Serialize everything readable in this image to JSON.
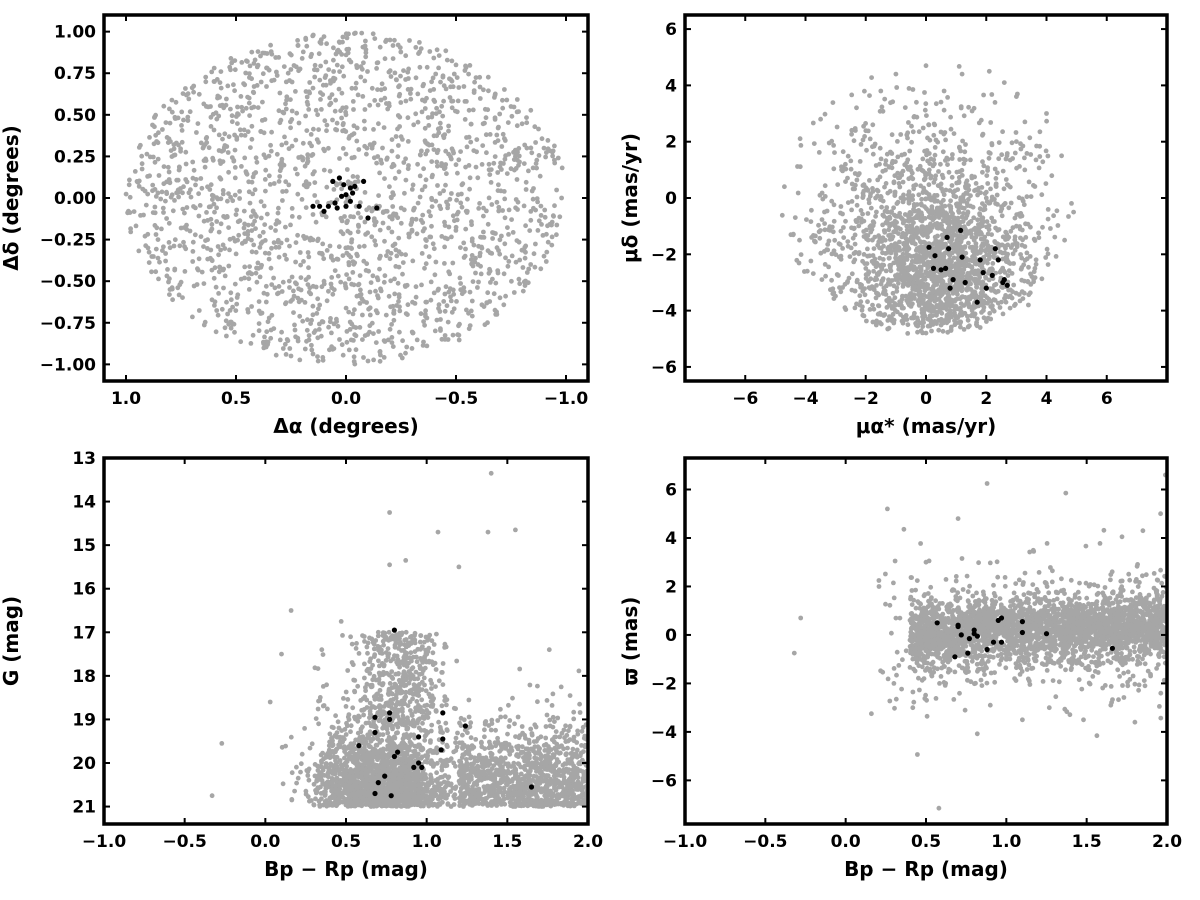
{
  "colors": {
    "field": "#a6a6a6",
    "member": "#000000",
    "axes": "#000000"
  },
  "chart_data": [
    {
      "type": "scatter",
      "panel": "top-left",
      "xlabel": "Δα (degrees)",
      "ylabel": "Δδ (degrees)",
      "xlim": [
        1.1,
        -1.1
      ],
      "ylim": [
        -1.1,
        1.1
      ],
      "x_inverted": true,
      "xticks": [
        "1.0",
        "0.5",
        "0.0",
        "−0.5",
        "−1.0"
      ],
      "xtick_values": [
        1.0,
        0.5,
        0.0,
        -0.5,
        -1.0
      ],
      "yticks": [
        "−1.00",
        "−0.75",
        "−0.50",
        "−0.25",
        "0.00",
        "0.25",
        "0.50",
        "0.75",
        "1.00"
      ],
      "ytick_values": [
        -1.0,
        -0.75,
        -0.5,
        -0.25,
        0.0,
        0.25,
        0.5,
        0.75,
        1.0
      ],
      "series": [
        {
          "role": "field",
          "description_level": "uniform disc of radius ~1 degree, approx. 1900 stars",
          "points": [
            [
              0.95,
              0.1
            ],
            [
              0.9,
              -0.3
            ],
            [
              0.8,
              0.45
            ],
            [
              0.6,
              0.7
            ],
            [
              0.4,
              0.88
            ],
            [
              0.1,
              0.97
            ],
            [
              -0.2,
              0.95
            ],
            [
              -0.5,
              0.8
            ],
            [
              -0.75,
              0.55
            ],
            [
              -0.9,
              0.3
            ],
            [
              -0.98,
              0.0
            ],
            [
              -0.9,
              -0.35
            ],
            [
              -0.7,
              -0.6
            ],
            [
              -0.45,
              -0.85
            ],
            [
              -0.1,
              -0.98
            ],
            [
              0.25,
              -0.95
            ],
            [
              0.55,
              -0.78
            ],
            [
              0.8,
              -0.55
            ],
            [
              0.3,
              0.2
            ],
            [
              -0.3,
              -0.2
            ],
            [
              0.5,
              -0.1
            ],
            [
              -0.5,
              0.2
            ],
            [
              0.0,
              0.5
            ],
            [
              0.1,
              -0.5
            ],
            [
              -0.6,
              -0.4
            ],
            [
              0.65,
              0.3
            ]
          ]
        },
        {
          "role": "members",
          "points": [
            [
              0.03,
              0.12
            ],
            [
              0.01,
              0.08
            ],
            [
              -0.02,
              0.06
            ],
            [
              0.06,
              0.1
            ],
            [
              -0.04,
              0.07
            ],
            [
              0.0,
              0.02
            ],
            [
              0.02,
              0.01
            ],
            [
              -0.03,
              0.03
            ],
            [
              0.05,
              -0.03
            ],
            [
              0.12,
              -0.05
            ],
            [
              0.08,
              -0.05
            ],
            [
              0.04,
              -0.06
            ],
            [
              0.0,
              -0.05
            ],
            [
              -0.06,
              -0.05
            ],
            [
              -0.08,
              0.1
            ],
            [
              -0.1,
              -0.12
            ],
            [
              -0.14,
              -0.06
            ],
            [
              0.15,
              -0.05
            ],
            [
              0.1,
              -0.08
            ],
            [
              -0.02,
              -0.02
            ]
          ]
        }
      ]
    },
    {
      "type": "scatter",
      "panel": "top-right",
      "xlabel": "μα* (mas/yr)",
      "ylabel": "μδ (mas/yr)",
      "xlim": [
        -8,
        8
      ],
      "ylim": [
        -6.5,
        6.5
      ],
      "xticks": [
        "−6",
        "−4",
        "−2",
        "0",
        "2",
        "4",
        "6"
      ],
      "xtick_values": [
        -6,
        -4,
        -2,
        0,
        2,
        4,
        6
      ],
      "yticks": [
        "−6",
        "−4",
        "−2",
        "0",
        "2",
        "4",
        "6"
      ],
      "ytick_values": [
        -6,
        -4,
        -2,
        0,
        2,
        4,
        6
      ],
      "series": [
        {
          "role": "field",
          "points": [
            [
              -4.7,
              0.4
            ],
            [
              -4.2,
              -1.5
            ],
            [
              -3.5,
              2.8
            ],
            [
              -2.8,
              1.0
            ],
            [
              -2.2,
              -3.8
            ],
            [
              -1.5,
              3.8
            ],
            [
              -1.0,
              4.4
            ],
            [
              -0.6,
              -4.5
            ],
            [
              0.0,
              4.7
            ],
            [
              0.0,
              -4.8
            ],
            [
              0.6,
              3.8
            ],
            [
              1.2,
              4.4
            ],
            [
              1.8,
              -4.6
            ],
            [
              2.1,
              4.5
            ],
            [
              2.6,
              4.1
            ],
            [
              3.0,
              3.6
            ],
            [
              3.4,
              -3.8
            ],
            [
              4.0,
              3.0
            ],
            [
              4.5,
              1.5
            ],
            [
              4.9,
              -0.5
            ],
            [
              4.6,
              -1.5
            ],
            [
              3.0,
              -1.0
            ],
            [
              1.0,
              -2.5
            ],
            [
              -1.0,
              -2.0
            ],
            [
              0.5,
              0.5
            ],
            [
              -2.0,
              -2.5
            ],
            [
              2.0,
              0.0
            ],
            [
              1.5,
              -3.5
            ]
          ]
        },
        {
          "role": "members",
          "points": [
            [
              0.1,
              -1.75
            ],
            [
              0.3,
              -2.05
            ],
            [
              0.25,
              -2.5
            ],
            [
              0.5,
              -2.55
            ],
            [
              0.65,
              -2.5
            ],
            [
              0.7,
              -1.4
            ],
            [
              0.75,
              -1.8
            ],
            [
              0.9,
              -2.9
            ],
            [
              0.8,
              -3.2
            ],
            [
              1.15,
              -1.15
            ],
            [
              1.2,
              -2.1
            ],
            [
              1.3,
              -3.0
            ],
            [
              1.7,
              -3.7
            ],
            [
              1.8,
              -2.2
            ],
            [
              1.9,
              -2.65
            ],
            [
              2.0,
              -3.2
            ],
            [
              2.3,
              -1.8
            ],
            [
              2.4,
              -2.2
            ],
            [
              2.55,
              -3.0
            ],
            [
              2.7,
              -3.1
            ],
            [
              2.6,
              -2.9
            ],
            [
              2.2,
              -2.75
            ]
          ]
        }
      ]
    },
    {
      "type": "scatter",
      "panel": "bottom-left",
      "xlabel": "Bp − Rp (mag)",
      "ylabel": "G (mag)",
      "xlim": [
        -1.0,
        2.0
      ],
      "ylim": [
        21.4,
        13.0
      ],
      "y_inverted": true,
      "xticks": [
        "−1.0",
        "−0.5",
        "0.0",
        "0.5",
        "1.0",
        "1.5",
        "2.0"
      ],
      "xtick_values": [
        -1.0,
        -0.5,
        0.0,
        0.5,
        1.0,
        1.5,
        2.0
      ],
      "yticks": [
        "13",
        "14",
        "15",
        "16",
        "17",
        "18",
        "19",
        "20",
        "21"
      ],
      "ytick_values": [
        13,
        14,
        15,
        16,
        17,
        18,
        19,
        20,
        21
      ],
      "series": [
        {
          "role": "field",
          "points": [
            [
              -0.33,
              20.75
            ],
            [
              -0.27,
              19.55
            ],
            [
              0.03,
              18.6
            ],
            [
              0.1,
              17.5
            ],
            [
              0.16,
              16.5
            ],
            [
              0.35,
              17.4
            ],
            [
              0.47,
              16.75
            ],
            [
              0.7,
              17.0
            ],
            [
              0.77,
              14.25
            ],
            [
              0.77,
              15.45
            ],
            [
              0.87,
              15.35
            ],
            [
              1.07,
              14.7
            ],
            [
              1.38,
              14.7
            ],
            [
              1.4,
              13.35
            ],
            [
              1.55,
              14.65
            ],
            [
              1.76,
              17.4
            ],
            [
              1.2,
              15.5
            ],
            [
              0.6,
              20.5
            ],
            [
              1.5,
              20.5
            ],
            [
              1.9,
              20.0
            ],
            [
              0.9,
              18.0
            ],
            [
              1.0,
              17.5
            ],
            [
              0.4,
              20.8
            ],
            [
              1.8,
              19.4
            ],
            [
              0.5,
              18.7
            ]
          ]
        },
        {
          "role": "members",
          "points": [
            [
              0.58,
              19.6
            ],
            [
              0.68,
              18.95
            ],
            [
              0.68,
              19.3
            ],
            [
              0.68,
              20.7
            ],
            [
              0.7,
              20.45
            ],
            [
              0.74,
              20.3
            ],
            [
              0.77,
              18.85
            ],
            [
              0.77,
              19.0
            ],
            [
              0.78,
              20.75
            ],
            [
              0.8,
              19.85
            ],
            [
              0.82,
              19.75
            ],
            [
              0.8,
              16.95
            ],
            [
              0.92,
              20.1
            ],
            [
              0.95,
              20.0
            ],
            [
              0.97,
              20.1
            ],
            [
              0.95,
              19.4
            ],
            [
              1.09,
              19.7
            ],
            [
              1.1,
              19.45
            ],
            [
              1.1,
              18.85
            ],
            [
              1.24,
              19.15
            ],
            [
              1.65,
              20.55
            ]
          ]
        }
      ]
    },
    {
      "type": "scatter",
      "panel": "bottom-right",
      "xlabel": "Bp − Rp (mag)",
      "ylabel": "ϖ (mas)",
      "xlim": [
        -1.0,
        2.0
      ],
      "ylim": [
        -7.8,
        7.3
      ],
      "xticks": [
        "−1.0",
        "−0.5",
        "0.0",
        "0.5",
        "1.0",
        "1.5",
        "2.0"
      ],
      "xtick_values": [
        -1.0,
        -0.5,
        0.0,
        0.5,
        1.0,
        1.5,
        2.0
      ],
      "yticks": [
        "−6",
        "−4",
        "−2",
        "0",
        "2",
        "4",
        "6"
      ],
      "ytick_values": [
        -6,
        -4,
        -2,
        0,
        2,
        4,
        6
      ],
      "series": [
        {
          "role": "field",
          "points": [
            [
              -0.32,
              -0.75
            ],
            [
              -0.28,
              0.7
            ],
            [
              0.16,
              -3.25
            ],
            [
              0.26,
              5.2
            ],
            [
              0.58,
              -7.15
            ],
            [
              0.88,
              6.25
            ],
            [
              1.37,
              5.85
            ],
            [
              1.48,
              -3.5
            ],
            [
              1.65,
              -2.9
            ],
            [
              1.8,
              -3.6
            ],
            [
              1.85,
              4.3
            ],
            [
              1.96,
              5.0
            ],
            [
              1.99,
              6.6
            ],
            [
              0.7,
              4.8
            ],
            [
              0.5,
              3.0
            ],
            [
              1.1,
              -3.5
            ],
            [
              0.9,
              -2.9
            ],
            [
              0.3,
              -2.0
            ]
          ]
        },
        {
          "role": "members",
          "points": [
            [
              0.57,
              0.5
            ],
            [
              0.68,
              -0.9
            ],
            [
              0.7,
              0.35
            ],
            [
              0.7,
              0.4
            ],
            [
              0.72,
              0.0
            ],
            [
              0.76,
              -0.75
            ],
            [
              0.77,
              -0.15
            ],
            [
              0.8,
              0.05
            ],
            [
              0.8,
              0.2
            ],
            [
              0.82,
              -0.05
            ],
            [
              0.88,
              -0.6
            ],
            [
              0.92,
              -0.3
            ],
            [
              0.95,
              0.6
            ],
            [
              0.97,
              0.7
            ],
            [
              0.97,
              -0.3
            ],
            [
              1.1,
              0.55
            ],
            [
              1.1,
              0.1
            ],
            [
              1.25,
              0.05
            ],
            [
              1.66,
              -0.55
            ]
          ]
        }
      ]
    }
  ]
}
